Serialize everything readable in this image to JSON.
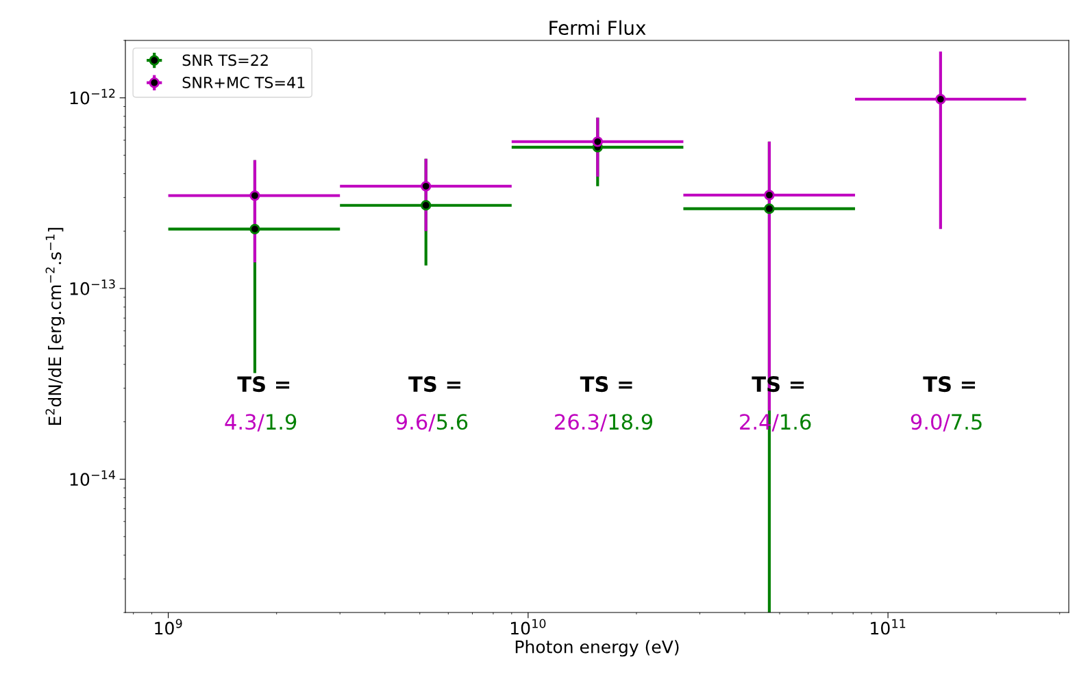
{
  "chart_data": {
    "type": "scatter",
    "title": "Fermi Flux",
    "xlabel": "Photon energy (eV)",
    "ylabel": "E$^{2}$dN/dE [erg.cm$^{−2}$.s$^{−1}$]",
    "log": "xy",
    "marker": "circle",
    "legend": "top left",
    "grid": false,
    "xlim": [
      760000000.0,
      318000000000.0
    ],
    "ylim": [
      2e-15,
      2e-12
    ],
    "xticks": [
      {
        "value": 1000000000.0,
        "label": "10$^{9}$"
      },
      {
        "value": 10000000000.0,
        "label": "10$^{10}$"
      },
      {
        "value": 100000000000.0,
        "label": "10$^{11}$"
      }
    ],
    "yticks": [
      {
        "value": 1e-14,
        "label": "10$^{−14}$"
      },
      {
        "value": 1e-13,
        "label": "10$^{−13}$"
      },
      {
        "value": 1e-12,
        "label": "10$^{−12}$"
      }
    ],
    "series": [
      {
        "name": "SNR TS=22",
        "color": "#008000",
        "x": [
          1740000000.0,
          5200000000.0,
          15600000000.0,
          46800000000.0
        ],
        "values": [
          2.05e-13,
          2.73e-13,
          5.51e-13,
          2.62e-13
        ],
        "errors": [
          [
            3.6e-14,
            4.71e-13
          ],
          [
            1.32e-13,
            4.79e-13
          ],
          [
            3.44e-13,
            7.87e-13
          ],
          [
            2e-15,
            5.89e-13
          ]
        ],
        "xerrors": [
          [
            1000000000.0,
            3000000000.0
          ],
          [
            3000000000.0,
            9000000000.0
          ],
          [
            9000000000.0,
            27000000000.0
          ],
          [
            27000000000.0,
            81000000000.0
          ]
        ]
      },
      {
        "name": "SNR+MC TS=41",
        "color": "#bf00bf",
        "x": [
          1740000000.0,
          5200000000.0,
          15600000000.0,
          46800000000.0,
          140000000000.0
        ],
        "values": [
          3.07e-13,
          3.44e-13,
          5.89e-13,
          3.09e-13,
          9.84e-13
        ],
        "errors": [
          [
            1.37e-13,
            4.71e-13
          ],
          [
            2e-13,
            4.79e-13
          ],
          [
            3.86e-13,
            7.87e-13
          ],
          [
            2.29e-14,
            5.89e-13
          ],
          [
            2.05e-13,
            1.75e-12
          ]
        ],
        "xerrors": [
          [
            1000000000.0,
            3000000000.0
          ],
          [
            3000000000.0,
            9000000000.0
          ],
          [
            9000000000.0,
            27000000000.0
          ],
          [
            27000000000.0,
            81000000000.0
          ],
          [
            81000000000.0,
            242000000000.0
          ]
        ]
      }
    ],
    "annotations": [
      "TS =",
      "4.3/1.9",
      "TS =",
      "9.6/5.6",
      "TS =",
      "26.3/18.9",
      "TS =",
      "2.4/1.6",
      "TS =",
      "9.0/7.5"
    ]
  }
}
